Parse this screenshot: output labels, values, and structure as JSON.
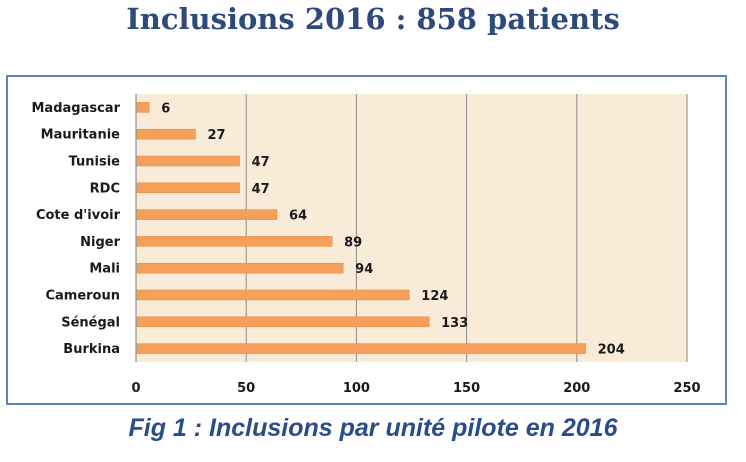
{
  "header": {
    "title": "Inclusions 2016 : 858 patients"
  },
  "caption": "Fig 1 : Inclusions par unité  pilote en 2016",
  "chart_data": {
    "type": "bar",
    "orientation": "horizontal",
    "categories": [
      "Madagascar",
      "Mauritanie",
      "Tunisie",
      "RDC",
      "Cote  d'ivoir",
      "Niger",
      "Mali",
      "Cameroun",
      "Sénégal",
      "Burkina"
    ],
    "values": [
      6,
      27,
      47,
      47,
      64,
      89,
      94,
      124,
      133,
      204
    ],
    "value_labels": [
      "6",
      "27",
      "47",
      "47",
      "64",
      "89",
      "94",
      "124",
      "133",
      "204"
    ],
    "xticks": [
      "0",
      "50",
      "100",
      "150",
      "200",
      "250"
    ],
    "xlim": [
      0,
      250
    ],
    "grid": true,
    "legend": "none",
    "colors": {
      "bar": "#f4a05a",
      "bar_edge": "#e48a3e",
      "plot_bg": "#f8ecd9",
      "grid": "#8a8a8a",
      "frame": "#5b86b8",
      "title": "#2e4a7d",
      "caption": "#2b4c8c"
    }
  }
}
